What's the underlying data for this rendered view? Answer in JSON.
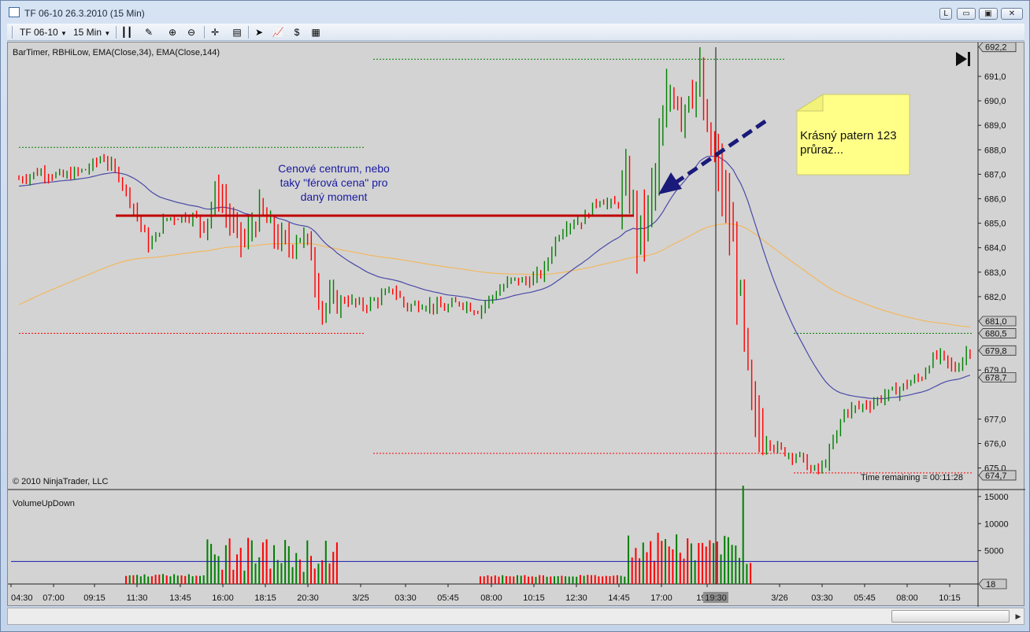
{
  "window": {
    "title": "TF 06-10  26.3.2010 (15 Min)",
    "buttons": [
      "L",
      "▭",
      "▣",
      "✕"
    ]
  },
  "toolbar": {
    "instrument": "TF 06-10",
    "interval": "15 Min"
  },
  "price_panel": {
    "indicators_label": "BarTimer, RBHiLow, EMA(Close,34), EMA(Close,144)",
    "copyright": "© 2010 NinjaTrader, LLC",
    "time_remaining": "Time remaining = 00:11:28",
    "annotation_blue": [
      "Cenové centrum, nebo",
      "taky \"férová cena\" pro",
      "daný moment"
    ],
    "note": [
      "Krásný patern 123",
      "průraz..."
    ],
    "y_ticks": [
      "691,0",
      "690,0",
      "689,0",
      "688,0",
      "687,0",
      "686,0",
      "685,0",
      "684,0",
      "683,0",
      "682,0",
      "677,0",
      "676,0"
    ],
    "y_partial_ticks": [
      "679,0",
      "675,0"
    ],
    "price_tags": [
      {
        "label": "692,2",
        "color": "#c8c8c8"
      },
      {
        "label": "681,0",
        "color": "#c8c8c8"
      },
      {
        "label": "680,5",
        "color": "#c8c8c8"
      },
      {
        "label": "679,8",
        "color": "#c8c8c8"
      },
      {
        "label": "678,7",
        "color": "#c8c8c8"
      },
      {
        "label": "674,7",
        "color": "#c8c8c8"
      }
    ]
  },
  "volume_panel": {
    "label": "VolumeUpDown",
    "y_ticks": [
      "15000",
      "10000",
      "5000"
    ],
    "last_tag": "18"
  },
  "x_axis": {
    "labels": [
      "04:30",
      "07:00",
      "09:15",
      "11:30",
      "13:45",
      "16:00",
      "18:15",
      "20:30",
      "3/25",
      "03:30",
      "05:45",
      "08:00",
      "10:15",
      "12:30",
      "14:45",
      "17:00",
      "19:30",
      "3/26",
      "03:30",
      "05:45",
      "08:00",
      "10:15"
    ],
    "cursor_label": "19:30"
  },
  "colors": {
    "up": "#008000",
    "down": "#ff0000",
    "ema34": "#4a4aa8",
    "ema144": "#f2b860",
    "centerline": "#c00000",
    "note_bg": "#ffff88",
    "annotation": "#1a1aa0",
    "volume_ref": "#1a1ab0"
  }
}
